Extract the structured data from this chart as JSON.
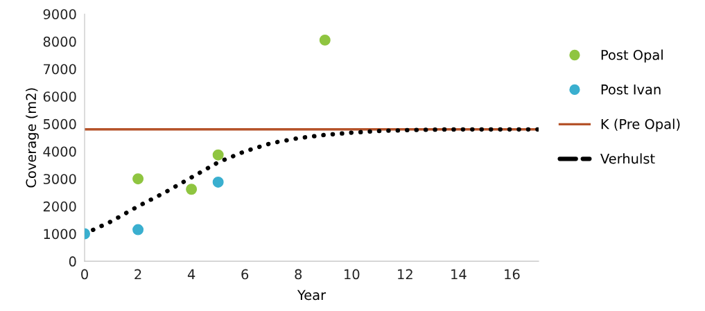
{
  "chart_data": {
    "type": "scatter",
    "xlabel": "Year",
    "ylabel": "Coverage (m2)",
    "xlim": [
      0,
      17
    ],
    "xticks": [
      0,
      2,
      4,
      6,
      8,
      10,
      12,
      14,
      16
    ],
    "ylim": [
      0,
      9000
    ],
    "yticks": [
      0,
      1000,
      2000,
      3000,
      4000,
      5000,
      6000,
      7000,
      8000,
      9000
    ],
    "grid": false,
    "legend": "right",
    "series": [
      {
        "name": "Post Opal",
        "marker": "circle",
        "color": "#8fc540",
        "x": [
          2,
          4,
          5,
          9
        ],
        "values": [
          3000,
          2620,
          3870,
          8050
        ]
      },
      {
        "name": "Post Ivan",
        "marker": "circle",
        "color": "#3aafcf",
        "x": [
          0,
          2,
          5
        ],
        "values": [
          1000,
          1150,
          2880
        ]
      },
      {
        "name": "K (Pre Opal)",
        "type": "line",
        "line_style": "solid",
        "color": "#b5532a",
        "x": [
          0,
          17
        ],
        "values": [
          4800,
          4800
        ]
      },
      {
        "name": "Verhulst",
        "type": "line",
        "line_style": "dotted",
        "color": "#000000",
        "x": [
          0,
          1,
          2,
          3,
          4,
          5,
          6,
          7,
          8,
          9,
          10,
          11,
          12,
          13,
          14,
          15,
          16,
          17
        ],
        "values": [
          1000,
          1450,
          2000,
          2500,
          3050,
          3600,
          4000,
          4300,
          4480,
          4600,
          4680,
          4740,
          4770,
          4790,
          4800,
          4800,
          4800,
          4800
        ]
      }
    ]
  }
}
